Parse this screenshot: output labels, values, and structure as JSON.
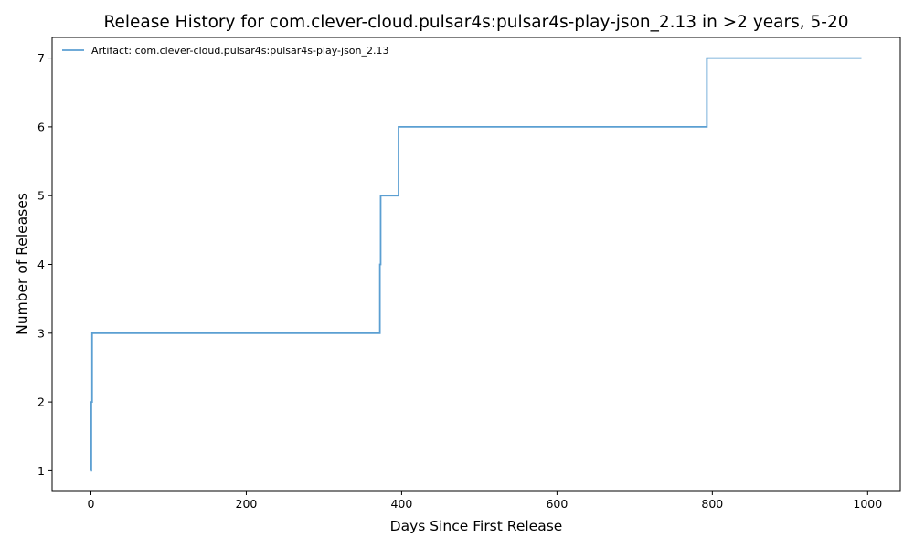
{
  "chart_data": {
    "type": "line",
    "title": "Release History for com.clever-cloud.pulsar4s:pulsar4s-play-json_2.13 in >2 years, 5-20",
    "xlabel": "Days Since First Release",
    "ylabel": "Number of Releases",
    "xlim": [
      -50,
      1042
    ],
    "ylim": [
      0.7,
      7.3
    ],
    "xticks": [
      0,
      200,
      400,
      600,
      800,
      1000
    ],
    "yticks": [
      1,
      2,
      3,
      4,
      5,
      6,
      7
    ],
    "grid": false,
    "legend_position": "top-left",
    "series": [
      {
        "name": "Artifact: com.clever-cloud.pulsar4s:pulsar4s-play-json_2.13",
        "color": "#5b9fd2",
        "step": "post",
        "x": [
          0,
          0.5,
          1.5,
          372,
          373,
          396,
          793,
          992
        ],
        "y": [
          1,
          2,
          3,
          4,
          5,
          6,
          7,
          7
        ]
      }
    ]
  }
}
